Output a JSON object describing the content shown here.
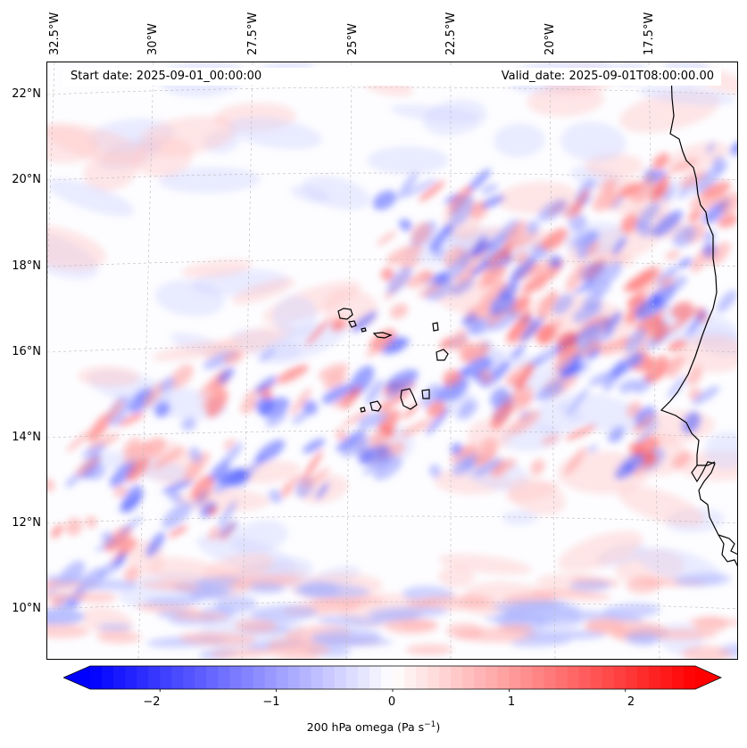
{
  "header": {
    "start_date": "Start date: 2025-09-01_00:00:00",
    "valid_date": "Valid_date: 2025-09-01T08:00:00.00"
  },
  "lon_labels": [
    "32.5°W",
    "30°W",
    "27.5°W",
    "25°W",
    "22.5°W",
    "20°W",
    "17.5°W"
  ],
  "lat_labels": [
    "22°N",
    "20°N",
    "18°N",
    "16°N",
    "14°N",
    "12°N",
    "10°N"
  ],
  "colorbar": {
    "label_prefix": "200 hPa omega (Pa s",
    "label_exp": "−1",
    "label_suffix": ")",
    "ticks": [
      "−2",
      "−1",
      "0",
      "1",
      "2"
    ],
    "tick_values": [
      -2,
      -1,
      0,
      1,
      2
    ],
    "range": [
      -2.6,
      2.6
    ],
    "colormap": "bwr",
    "color_min": "#0000ff",
    "color_mid": "#ffffff",
    "color_max": "#ff0000",
    "extend": "both"
  },
  "map": {
    "field": "200 hPa omega",
    "coastline_color": "#000000",
    "gridline_color": "#bbbbbb",
    "lon_range": [
      "33°W",
      "16°W"
    ],
    "lat_range": [
      "9°N",
      "22.8°N"
    ]
  }
}
